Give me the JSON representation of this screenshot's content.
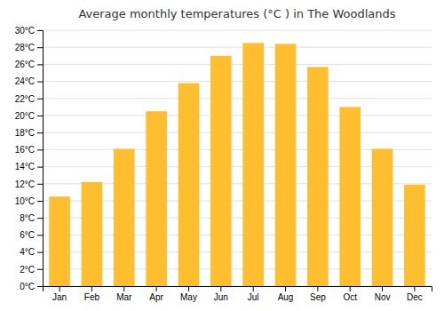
{
  "chart_data": {
    "type": "bar",
    "title": "Average monthly temperatures (°C ) in The Woodlands",
    "categories": [
      "Jan",
      "Feb",
      "Mar",
      "Apr",
      "May",
      "Jun",
      "Jul",
      "Aug",
      "Sep",
      "Oct",
      "Nov",
      "Dec"
    ],
    "values": [
      10.5,
      12.2,
      16.1,
      20.5,
      23.8,
      27.0,
      28.5,
      28.4,
      25.7,
      21.0,
      16.1,
      11.9
    ],
    "color": "#FFBE30",
    "ylim": [
      0,
      30
    ],
    "yticks": [
      {
        "value": 0,
        "label": "0°C"
      },
      {
        "value": 2,
        "label": "2°C"
      },
      {
        "value": 4,
        "label": "4°C"
      },
      {
        "value": 6,
        "label": "6°C"
      },
      {
        "value": 8,
        "label": "8°C"
      },
      {
        "value": 10,
        "label": "10°C"
      },
      {
        "value": 12,
        "label": "12°C"
      },
      {
        "value": 14,
        "label": "14°C"
      },
      {
        "value": 16,
        "label": "16°C"
      },
      {
        "value": 18,
        "label": "18°C"
      },
      {
        "value": 20,
        "label": "20°C"
      },
      {
        "value": 22,
        "label": "22°C"
      },
      {
        "value": 24,
        "label": "24°C"
      },
      {
        "value": 26,
        "label": "26°C"
      },
      {
        "value": 28,
        "label": "28°C"
      },
      {
        "value": 30,
        "label": "30°C"
      }
    ],
    "grid": true
  }
}
